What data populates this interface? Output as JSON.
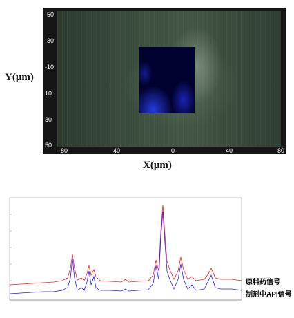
{
  "map": {
    "y_axis_label": "Y(μm)",
    "x_axis_label": "X(μm)",
    "y_ticks": [
      "-50",
      "-30",
      "-10",
      "10",
      "30",
      "50"
    ],
    "x_ticks": [
      "-80",
      "-40",
      "0",
      "40",
      "80"
    ]
  },
  "spectrum": {
    "legend": {
      "raw_api": "原料药信号",
      "formulation_api": "制剂中API信号"
    },
    "colors": {
      "raw_api": "#ff2020",
      "formulation_api": "#2020ff"
    }
  }
}
